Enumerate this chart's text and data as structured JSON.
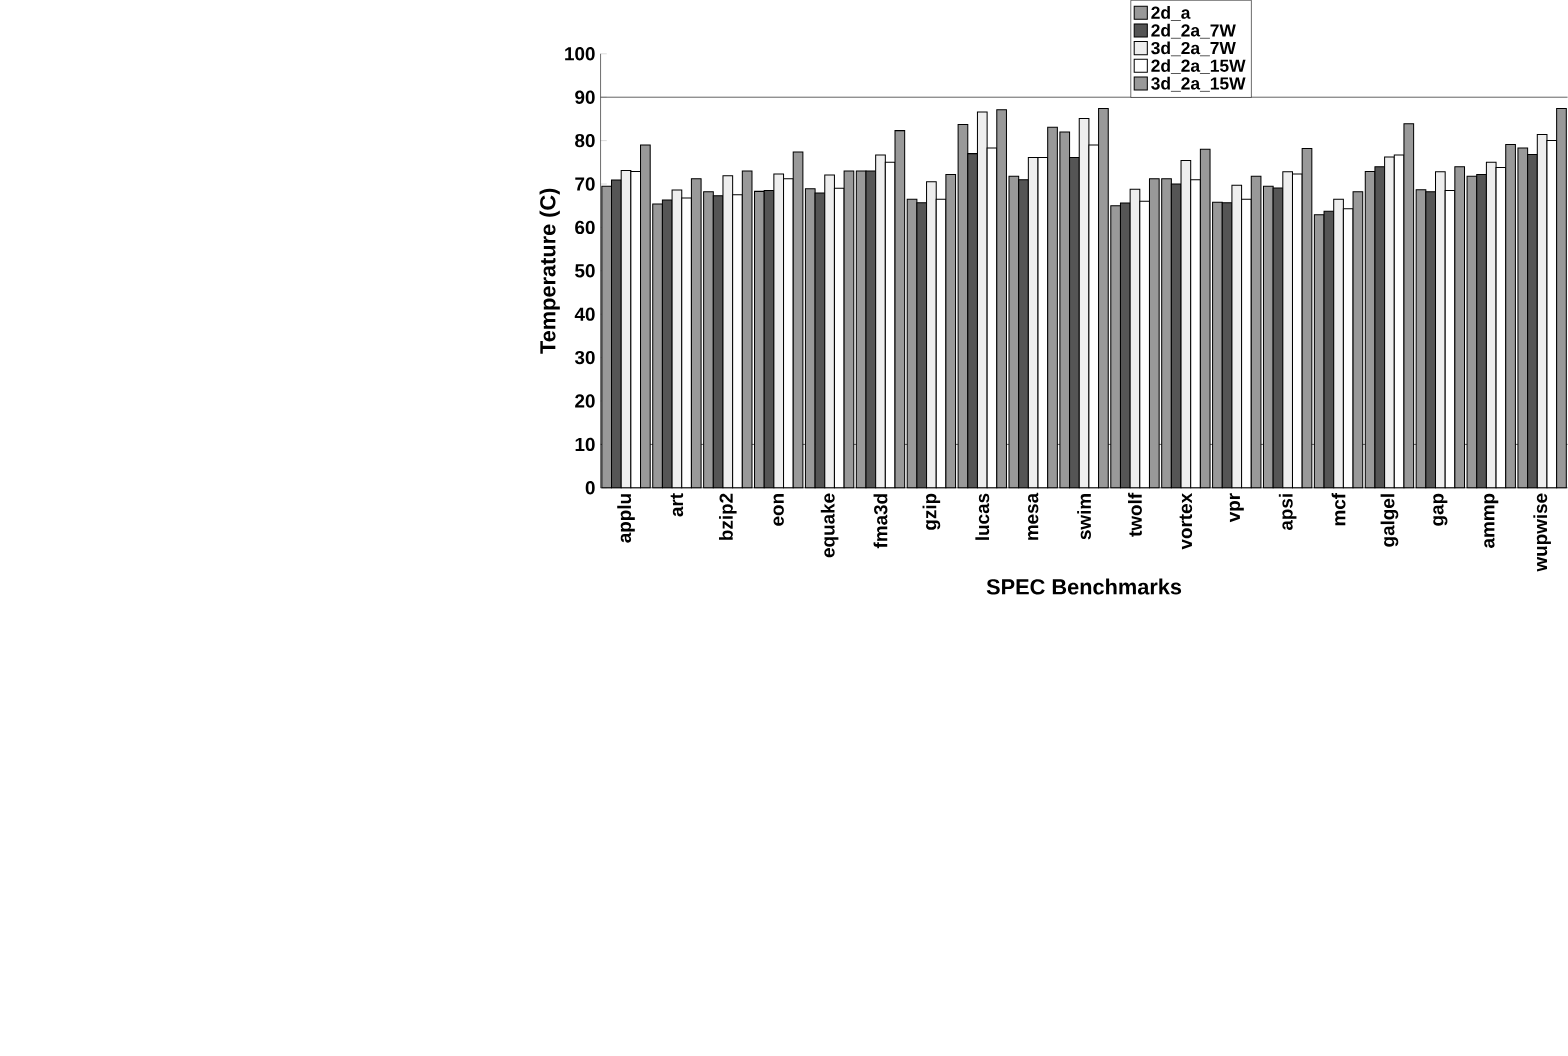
{
  "chart_data": {
    "type": "bar",
    "xlabel": "SPEC Benchmarks",
    "ylabel": "Temperature (C)",
    "categories": [
      "applu",
      "art",
      "bzip2",
      "eon",
      "equake",
      "fma3d",
      "gzip",
      "lucas",
      "mesa",
      "swim",
      "twolf",
      "vortex",
      "vpr",
      "apsi",
      "mcf",
      "galgel",
      "gap",
      "ammp",
      "wupwise"
    ],
    "series": [
      {
        "name": "2d_a",
        "color": "#999999",
        "values": [
          69.5,
          65.4,
          68.2,
          68.3,
          68.9,
          73.0,
          66.5,
          83.7,
          71.8,
          82.0,
          65.0,
          71.2,
          65.8,
          69.5,
          62.9,
          72.9,
          68.7,
          71.8,
          78.3
        ]
      },
      {
        "name": "2d_2a_7W",
        "color": "#555555",
        "values": [
          70.9,
          66.3,
          67.3,
          68.5,
          67.9,
          73.0,
          65.7,
          77.0,
          71.0,
          76.1,
          65.6,
          70.0,
          65.7,
          69.1,
          63.7,
          74.0,
          68.2,
          72.2,
          76.8
        ]
      },
      {
        "name": "3d_2a_7W",
        "color": "#eeeeee",
        "values": [
          73.1,
          68.6,
          71.9,
          72.3,
          72.1,
          76.7,
          70.5,
          86.6,
          76.1,
          85.1,
          68.8,
          75.4,
          69.7,
          72.8,
          66.5,
          76.2,
          72.8,
          75.0,
          81.4
        ]
      },
      {
        "name": "2d_2a_15W",
        "color": "#ffffff",
        "values": [
          72.9,
          66.8,
          67.5,
          71.2,
          69.0,
          75.0,
          66.5,
          78.3,
          76.1,
          79.0,
          66.0,
          71.0,
          66.5,
          72.3,
          64.3,
          76.7,
          68.5,
          73.8,
          80.0
        ]
      },
      {
        "name": "3d_2a_15W",
        "color": "#999999",
        "values": [
          79.0,
          71.2,
          73.0,
          77.4,
          73.0,
          82.3,
          72.2,
          87.1,
          83.1,
          87.4,
          71.2,
          78.0,
          71.8,
          78.2,
          68.2,
          83.9,
          74.0,
          79.1,
          87.4
        ]
      }
    ],
    "ylim": [
      0,
      100
    ],
    "yticks": [
      0,
      10,
      20,
      30,
      40,
      50,
      60,
      70,
      80,
      90,
      100
    ],
    "grid": false,
    "legend": "top right",
    "ref_lines": [
      {
        "axis": "y",
        "value": 10
      },
      {
        "axis": "y",
        "value": 90
      }
    ]
  }
}
